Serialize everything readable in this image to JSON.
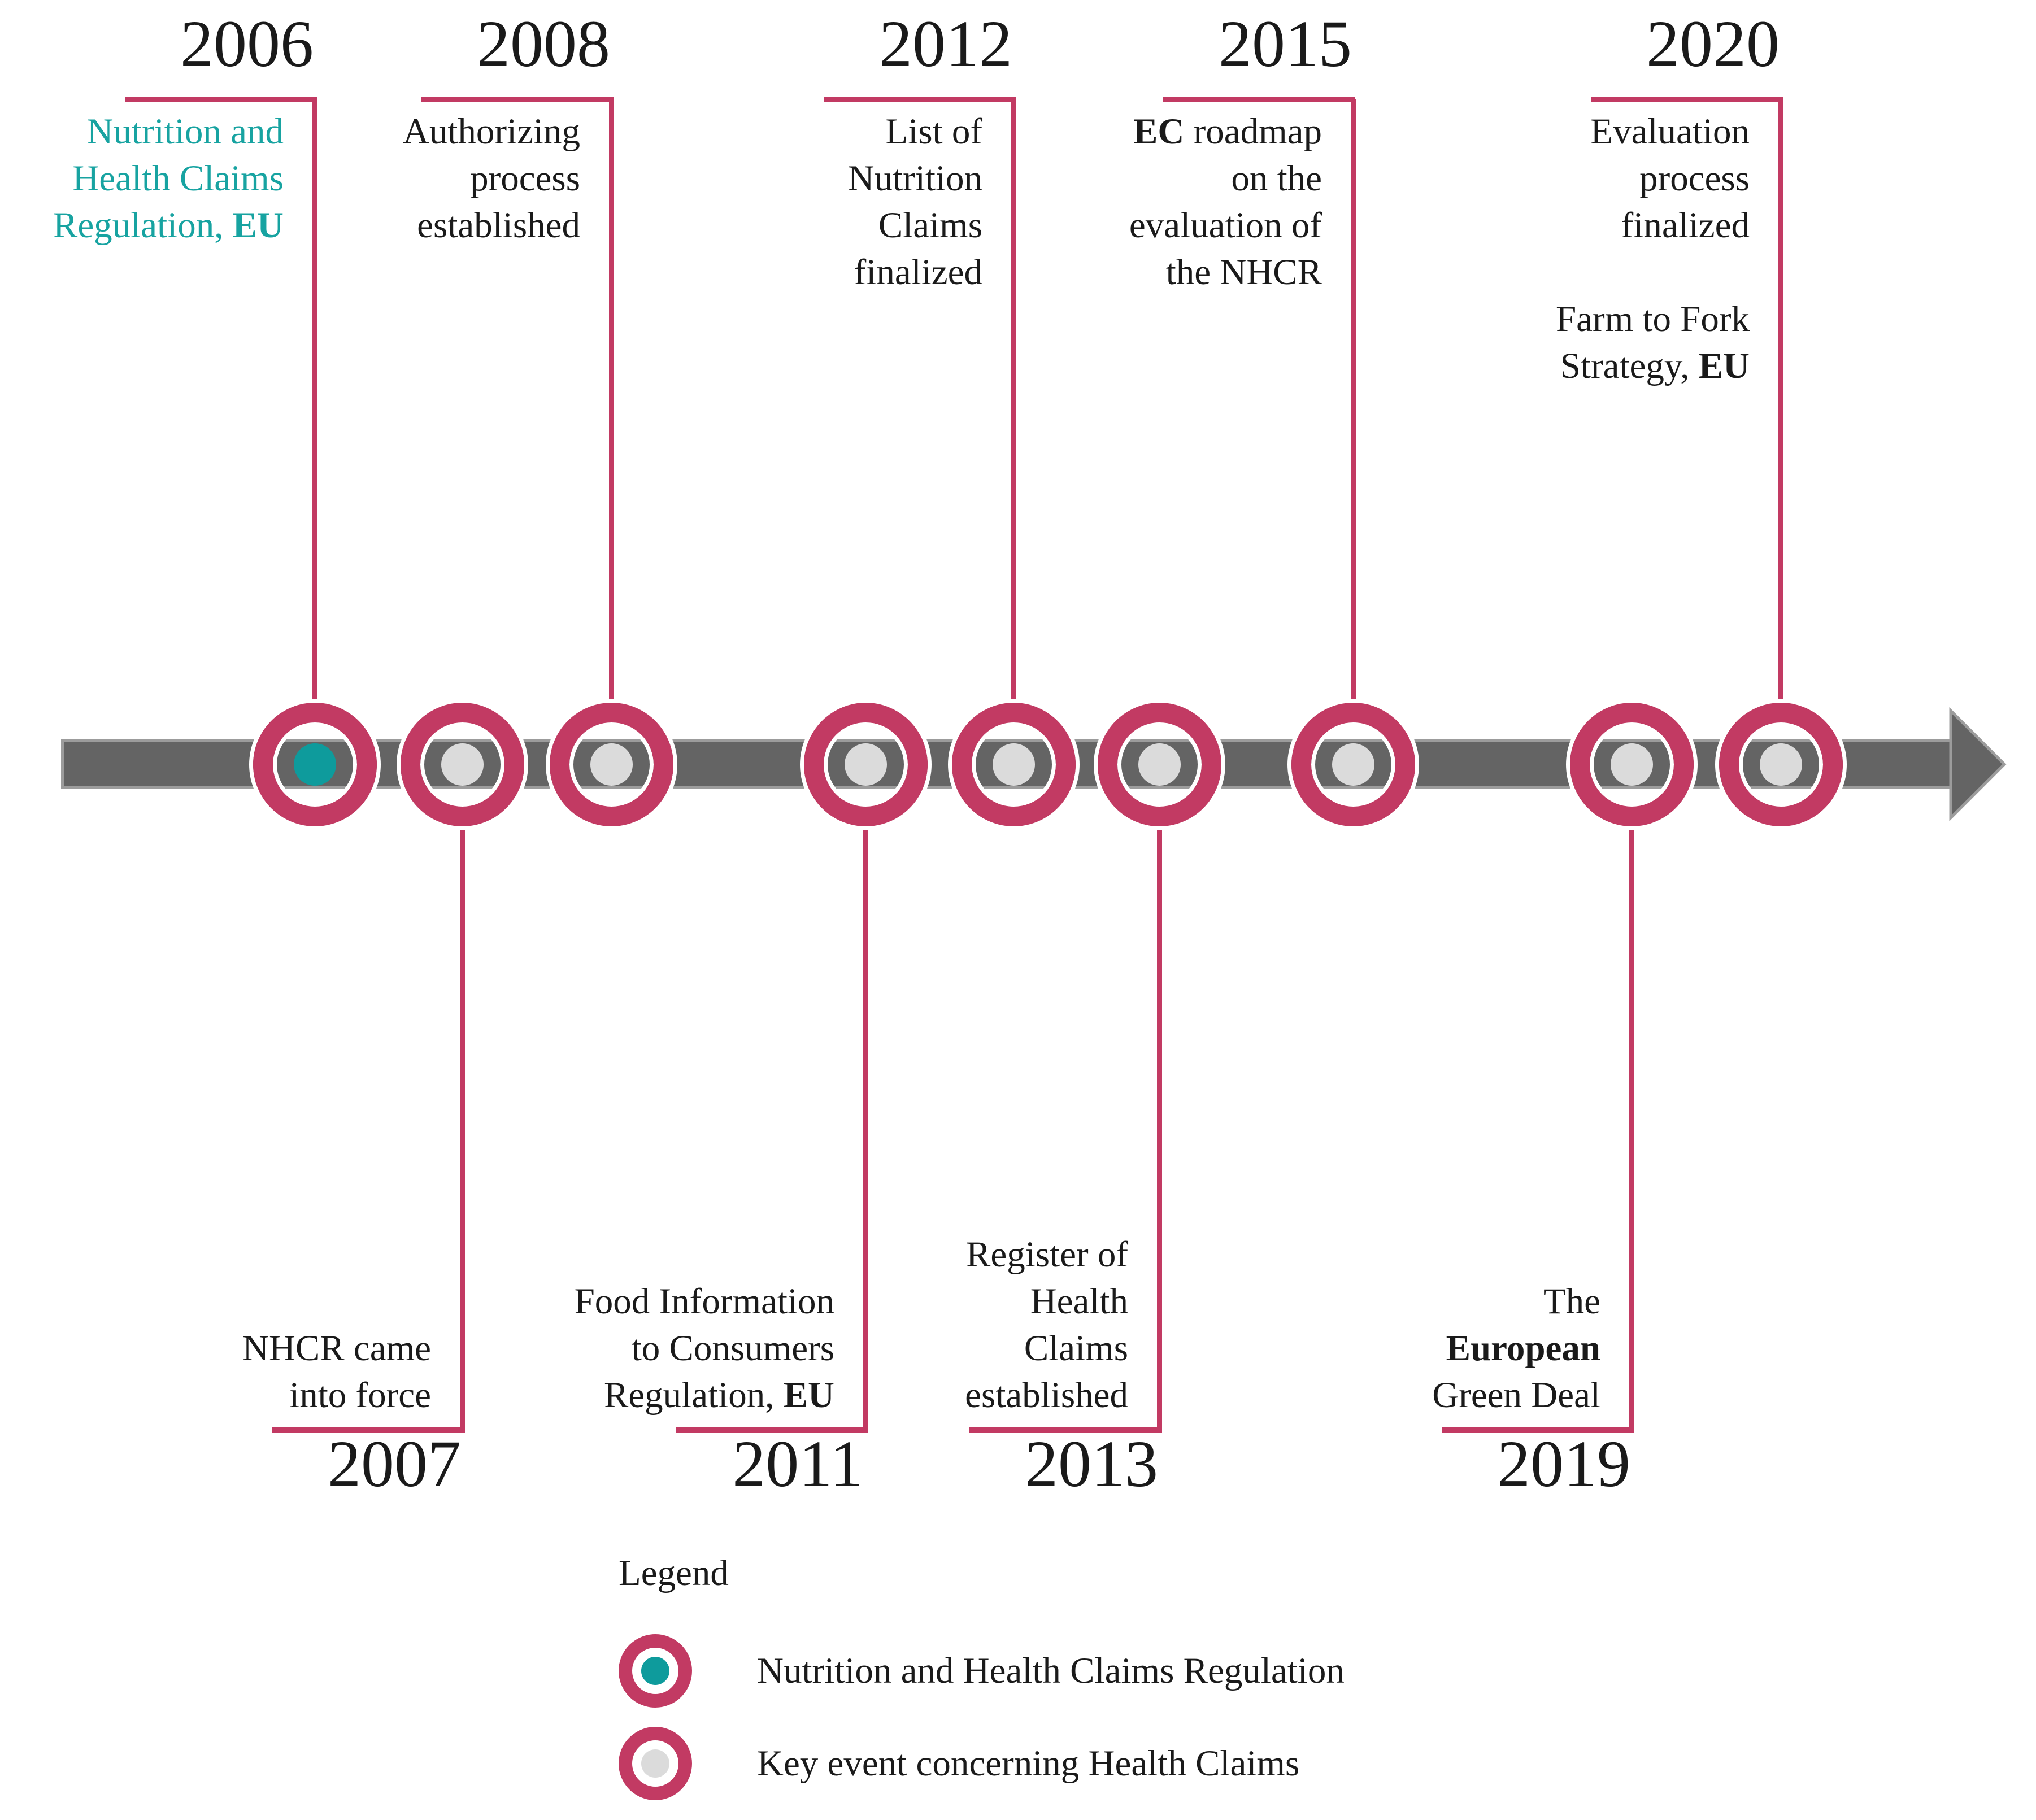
{
  "figure_colors": {
    "accent_pink": "#C23A63",
    "teal_dot": "#0E9B9C",
    "teal_text": "#17A3A1",
    "gray_dot": "#DBDBDB",
    "bar_gray": "#646464",
    "bar_edge_gray": "#9C9C9C",
    "text": "#1A1A1A"
  },
  "events": [
    {
      "year": "2006",
      "position": "above",
      "dot": "teal",
      "text_color": "teal",
      "lines": [
        [
          {
            "t": "Nutrition and"
          }
        ],
        [
          {
            "t": "Health Claims"
          }
        ],
        [
          {
            "t": "Regulation, "
          },
          {
            "t": "EU",
            "b": true
          }
        ]
      ]
    },
    {
      "year": "2007",
      "position": "below",
      "dot": "gray",
      "lines": [
        [
          {
            "t": "NHCR came"
          }
        ],
        [
          {
            "t": "into force"
          }
        ]
      ]
    },
    {
      "year": "2008",
      "position": "above",
      "dot": "gray",
      "lines": [
        [
          {
            "t": "Authorizing"
          }
        ],
        [
          {
            "t": "process"
          }
        ],
        [
          {
            "t": "established"
          }
        ]
      ]
    },
    {
      "year": "2011",
      "position": "below",
      "dot": "gray",
      "lines": [
        [
          {
            "t": "Food Information"
          }
        ],
        [
          {
            "t": "to Consumers"
          }
        ],
        [
          {
            "t": "Regulation, "
          },
          {
            "t": "EU",
            "b": true
          }
        ]
      ]
    },
    {
      "year": "2012",
      "position": "above",
      "dot": "gray",
      "lines": [
        [
          {
            "t": "List of"
          }
        ],
        [
          {
            "t": "Nutrition"
          }
        ],
        [
          {
            "t": "Claims"
          }
        ],
        [
          {
            "t": "finalized"
          }
        ]
      ]
    },
    {
      "year": "2013",
      "position": "below",
      "dot": "gray",
      "lines": [
        [
          {
            "t": "Register of"
          }
        ],
        [
          {
            "t": "Health"
          }
        ],
        [
          {
            "t": "Claims"
          }
        ],
        [
          {
            "t": "established"
          }
        ]
      ]
    },
    {
      "year": "2015",
      "position": "above",
      "dot": "gray",
      "lines": [
        [
          {
            "t": "EC",
            "b": true
          },
          {
            "t": " roadmap"
          }
        ],
        [
          {
            "t": "on the"
          }
        ],
        [
          {
            "t": "evaluation of"
          }
        ],
        [
          {
            "t": "the NHCR"
          }
        ]
      ]
    },
    {
      "year": "2019",
      "position": "below",
      "dot": "gray",
      "lines": [
        [
          {
            "t": "The"
          }
        ],
        [
          {
            "t": "European",
            "b": true
          }
        ],
        [
          {
            "t": "Green Deal"
          }
        ]
      ]
    },
    {
      "year": "2020",
      "position": "above",
      "dot": "gray",
      "lines": [
        [
          {
            "t": "Evaluation"
          }
        ],
        [
          {
            "t": "process"
          }
        ],
        [
          {
            "t": "finalized"
          }
        ],
        [
          {
            "t": ""
          }
        ],
        [
          {
            "t": "Farm to Fork"
          }
        ],
        [
          {
            "t": "Strategy, "
          },
          {
            "t": "EU",
            "b": true
          }
        ]
      ]
    }
  ],
  "legend": {
    "title": "Legend",
    "items": [
      {
        "icon": "nhcr-marker",
        "dot": "teal",
        "label": "Nutrition and Health Claims Regulation"
      },
      {
        "icon": "key-event-marker",
        "dot": "gray",
        "label": "Key event concerning Health Claims"
      }
    ]
  }
}
